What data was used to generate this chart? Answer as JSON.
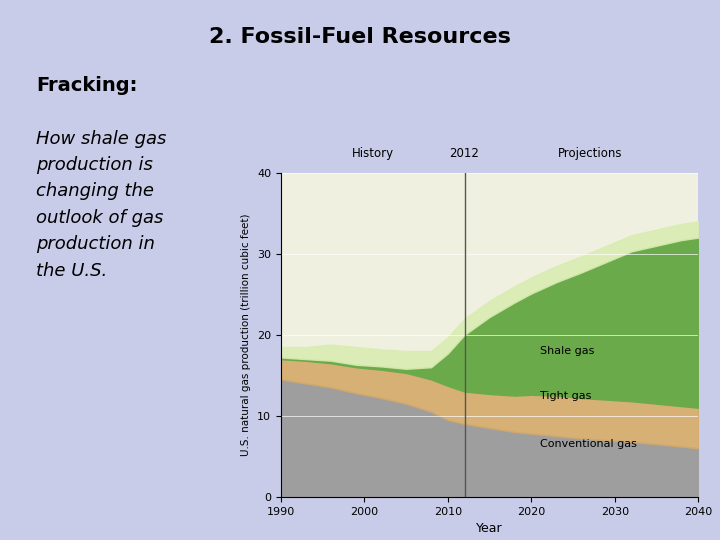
{
  "title": "2. Fossil-Fuel Resources",
  "subtitle": "Fracking:",
  "body_text": "How shale gas\nproduction is\nchanging the\noutlook of gas\nproduction in\nthe U.S.",
  "background_color": "#c8cce8",
  "chart_bg": "#f0f0e0",
  "ylabel": "U.S. natural gas production (trillion cubic feet)",
  "xlabel": "Year",
  "ylim": [
    0,
    40
  ],
  "xlim": [
    1990,
    2040
  ],
  "divider_year": 2012,
  "history_label": "History",
  "projections_label": "Projections",
  "divider_label": "2012",
  "years": [
    1990,
    1993,
    1996,
    1999,
    2002,
    2005,
    2008,
    2010,
    2012,
    2015,
    2018,
    2020,
    2023,
    2026,
    2029,
    2032,
    2035,
    2038,
    2040
  ],
  "conventional_gas": [
    14.5,
    14.0,
    13.5,
    12.8,
    12.2,
    11.5,
    10.5,
    9.5,
    9.0,
    8.5,
    8.0,
    7.8,
    7.5,
    7.2,
    7.0,
    6.8,
    6.5,
    6.2,
    6.0
  ],
  "tight_gas": [
    2.5,
    2.8,
    3.0,
    3.2,
    3.5,
    3.8,
    4.0,
    4.2,
    4.0,
    4.2,
    4.5,
    4.8,
    5.0,
    5.0,
    5.0,
    5.0,
    5.0,
    5.0,
    5.0
  ],
  "shale_gas": [
    0.2,
    0.2,
    0.3,
    0.3,
    0.4,
    0.5,
    1.5,
    4.0,
    7.0,
    9.5,
    11.5,
    12.5,
    14.0,
    15.5,
    17.0,
    18.5,
    19.5,
    20.5,
    21.0
  ],
  "other_gas": [
    1.3,
    1.5,
    2.0,
    2.2,
    2.1,
    2.2,
    2.0,
    2.0,
    2.0,
    2.0,
    2.0,
    2.0,
    2.0,
    2.0,
    2.0,
    2.0,
    2.0,
    2.0,
    2.0
  ],
  "color_conventional": "#9e9e9e",
  "color_tight": "#d4a96a",
  "color_shale": "#6aaa4a",
  "color_other": "#d8ecb0",
  "label_shale": "Shale gas",
  "label_tight": "Tight gas",
  "label_conventional": "Conventional gas"
}
